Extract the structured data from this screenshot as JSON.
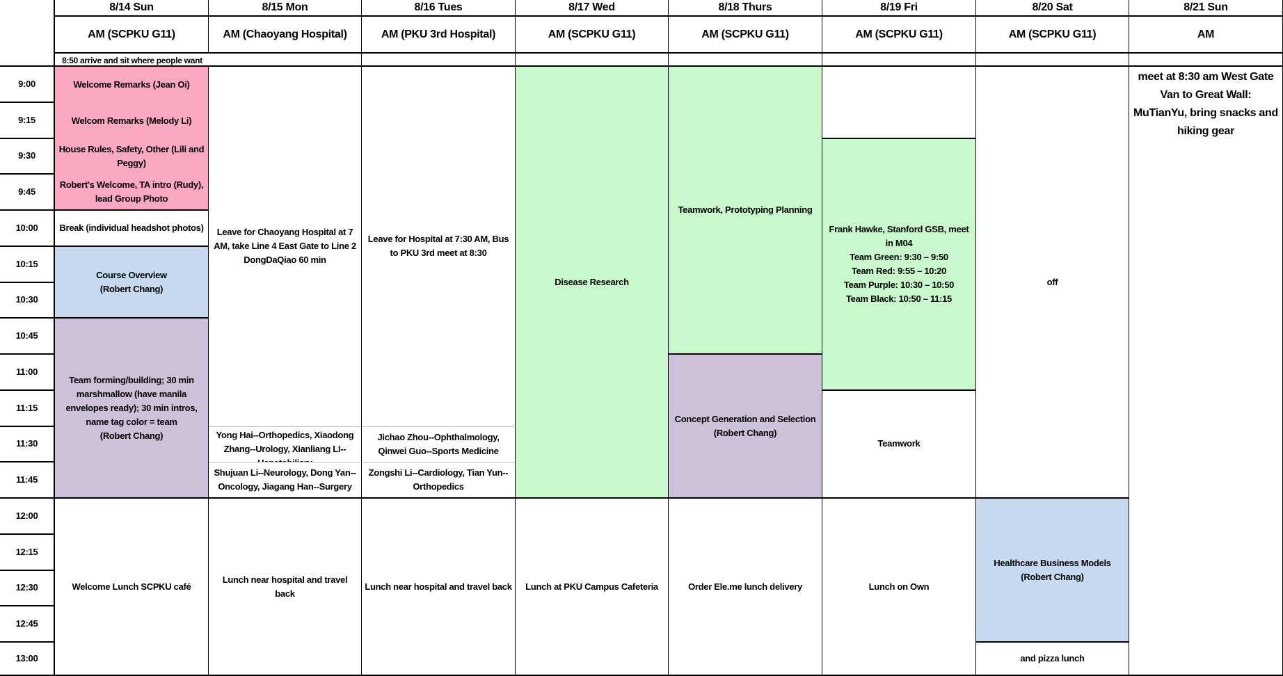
{
  "colors": {
    "pink": "#fba8c2",
    "blue": "#c6d9f0",
    "purple": "#cdc1da",
    "green": "#c8f8cc",
    "white": "#ffffff"
  },
  "times": [
    "9:00",
    "9:15",
    "9:30",
    "9:45",
    "10:00",
    "10:15",
    "10:30",
    "10:45",
    "11:00",
    "11:15",
    "11:30",
    "11:45",
    "12:00",
    "12:15",
    "12:30",
    "12:45",
    "13:00"
  ],
  "arrival_note": "8:50 arrive and sit where people want",
  "days": [
    {
      "date": "8/14 Sun",
      "session": "AM (SCPKU G11)",
      "blocks": [
        {
          "start": "9:00",
          "end": "9:15",
          "text": "Welcome Remarks (Jean Oi)",
          "color": "pink",
          "divider": false
        },
        {
          "start": "9:15",
          "end": "9:30",
          "text": "Welcom Remarks (Melody Li)",
          "color": "pink",
          "divider": false
        },
        {
          "start": "9:30",
          "end": "9:45",
          "text": "House Rules, Safety, Other (Lili and Peggy)",
          "color": "pink",
          "divider": false
        },
        {
          "start": "9:45",
          "end": "10:00",
          "text": "Robert's Welcome, TA intro (Rudy), lead Group Photo",
          "color": "pink"
        },
        {
          "start": "10:00",
          "end": "10:15",
          "text": "Break (individual headshot photos)",
          "color": "white"
        },
        {
          "start": "10:15",
          "end": "10:45",
          "text": "Course Overview\n(Robert Chang)",
          "color": "blue"
        },
        {
          "start": "10:45",
          "end": "12:00",
          "text": "Team forming/building; 30 min marshmallow (have manila envelopes ready); 30 min intros, name tag color = team\n(Robert Chang)",
          "color": "purple"
        },
        {
          "start": "12:00",
          "end": "end",
          "text": "Welcome Lunch SCPKU café",
          "color": "white"
        }
      ]
    },
    {
      "date": "8/15 Mon",
      "session": "AM (Chaoyang Hospital)",
      "blocks": [
        {
          "start": "9:00",
          "end": "11:30",
          "text": "Leave for Chaoyang Hospital at 7 AM, take Line 4 East Gate to Line 2 DongDaQiao 60 min",
          "color": "white",
          "thin": true
        },
        {
          "start": "11:30",
          "end": "11:45",
          "text": "Yong Hai--Orthopedics, Xiaodong Zhang--Urology, Xianliang Li--Hepatobiliary",
          "color": "white",
          "thin": true,
          "clip": true
        },
        {
          "start": "11:45",
          "end": "12:00",
          "text": "Shujuan Li--Neurology, Dong Yan--Oncology, Jiagang Han--Surgery",
          "color": "white"
        },
        {
          "start": "12:00",
          "end": "end",
          "text": "Lunch near hospital and travel back",
          "color": "white"
        }
      ]
    },
    {
      "date": "8/16 Tues",
      "session": "AM (PKU 3rd Hospital)",
      "blocks": [
        {
          "start": "9:00",
          "end": "11:30",
          "text": "Leave for Hospital at 7:30 AM, Bus to PKU 3rd meet at 8:30",
          "color": "white",
          "thin": true
        },
        {
          "start": "11:30",
          "end": "11:45",
          "text": "Jichao Zhou--Ophthalmology, Qinwei Guo--Sports Medicine",
          "color": "white",
          "thin": true
        },
        {
          "start": "11:45",
          "end": "12:00",
          "text": "Zongshi Li--Cardiology, Tian Yun--Orthopedics",
          "color": "white"
        },
        {
          "start": "12:00",
          "end": "end",
          "text": "Lunch near hospital and travel back",
          "color": "white"
        }
      ]
    },
    {
      "date": "8/17 Wed",
      "session": "AM (SCPKU G11)",
      "blocks": [
        {
          "start": "9:00",
          "end": "12:00",
          "text": "Disease Research",
          "color": "green"
        },
        {
          "start": "12:00",
          "end": "end",
          "text": "Lunch at PKU Campus Cafeteria",
          "color": "white"
        }
      ]
    },
    {
      "date": "8/18 Thurs",
      "session": "AM (SCPKU G11)",
      "blocks": [
        {
          "start": "9:00",
          "end": "11:00",
          "text": "Teamwork, Prototyping Planning",
          "color": "green"
        },
        {
          "start": "11:00",
          "end": "12:00",
          "text": "Concept Generation and Selection\n(Robert Chang)",
          "color": "purple"
        },
        {
          "start": "12:00",
          "end": "end",
          "text": "Order Ele.me lunch delivery",
          "color": "white"
        }
      ]
    },
    {
      "date": "8/19 Fri",
      "session": "AM (SCPKU G11)",
      "blocks": [
        {
          "start": "9:00",
          "end": "9:30",
          "text": "",
          "color": "white"
        },
        {
          "start": "9:30",
          "end": "11:15",
          "text": "Frank Hawke, Stanford GSB, meet in M04\nTeam Green: 9:30 – 9:50\nTeam Red: 9:55 – 10:20\nTeam Purple: 10:30 – 10:50\nTeam Black: 10:50 – 11:15",
          "color": "green"
        },
        {
          "start": "11:15",
          "end": "12:00",
          "text": "Teamwork",
          "color": "white"
        },
        {
          "start": "12:00",
          "end": "end",
          "text": "Lunch on Own",
          "color": "white"
        }
      ]
    },
    {
      "date": "8/20 Sat",
      "session": "AM (SCPKU G11)",
      "blocks": [
        {
          "start": "9:00",
          "end": "12:00",
          "text": "off",
          "color": "white"
        },
        {
          "start": "12:00",
          "end": "13:00",
          "text": "Healthcare Business Models\n(Robert Chang)",
          "color": "blue"
        },
        {
          "start": "13:00",
          "end": "end",
          "text": "and pizza lunch",
          "color": "white"
        }
      ]
    },
    {
      "date": "8/21 Sun",
      "session": "AM",
      "blocks": [
        {
          "start": "9:00",
          "end": "end",
          "text": "meet at 8:30 am West Gate Van to Great Wall: MuTianYu, bring snacks and hiking gear",
          "color": "white",
          "top": true
        }
      ]
    }
  ]
}
